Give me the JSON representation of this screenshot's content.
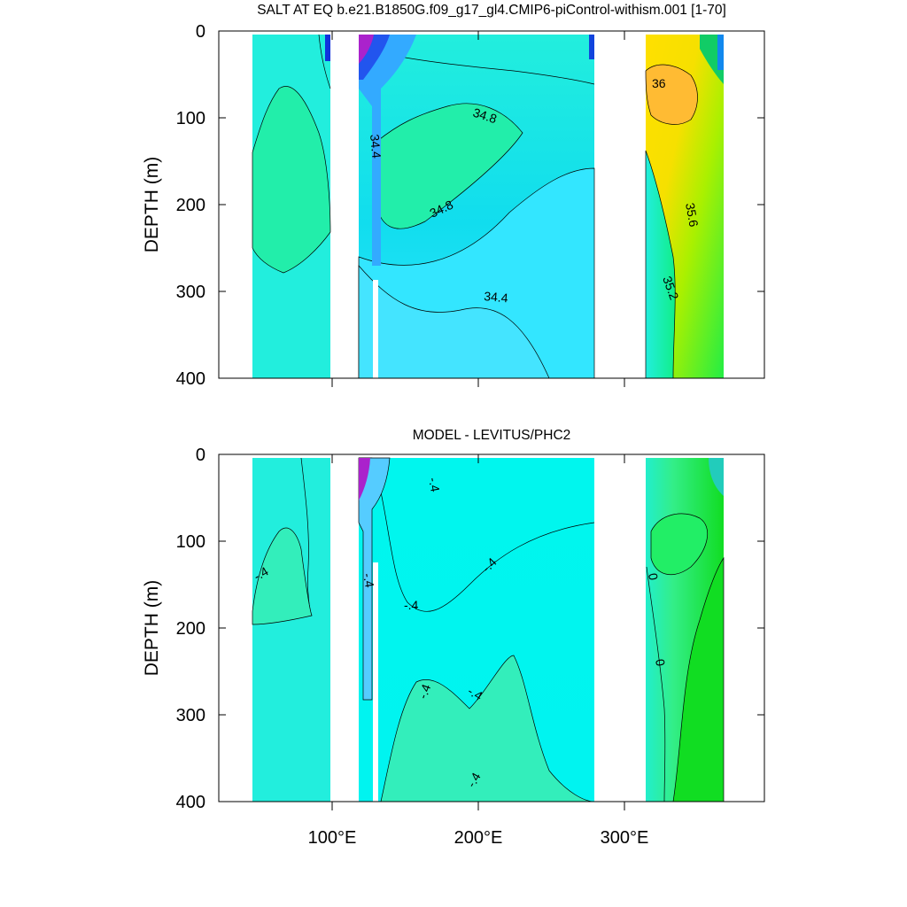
{
  "chart_data": [
    {
      "type": "heatmap",
      "subtype": "filled-contour depth-longitude section",
      "title": "SALT AT EQ b.e21.B1850G.f09_g17_gl4.CMIP6-piControl-withism.001 [1-70]",
      "ylabel": "DEPTH (m)",
      "xlabel": "",
      "xlim": [
        28,
        390
      ],
      "ylim": [
        0,
        400
      ],
      "y_inverted": true,
      "xticks": [
        100,
        200,
        300
      ],
      "xtick_labels": [
        "100°E",
        "200°E",
        "300°E"
      ],
      "yticks": [
        0,
        100,
        200,
        300,
        400
      ],
      "ytick_labels": [
        "0",
        "100",
        "200",
        "300",
        "400"
      ],
      "land_gaps_lon": [
        [
          98,
          118
        ],
        [
          278,
          315
        ]
      ],
      "contour_labels": [
        {
          "text": "34.8",
          "lon": 198,
          "depth": 96
        },
        {
          "text": "34.4",
          "lon": 127,
          "depth": 140
        },
        {
          "text": "34.8",
          "lon": 157,
          "depth": 210
        },
        {
          "text": "34.4",
          "lon": 204,
          "depth": 307
        },
        {
          "text": "36",
          "lon": 320,
          "depth": 62
        },
        {
          "text": "35.6",
          "lon": 337,
          "depth": 199
        },
        {
          "text": "35.2",
          "lon": 340,
          "depth": 285
        }
      ]
    },
    {
      "type": "heatmap",
      "subtype": "filled-contour depth-longitude section",
      "title": "MODEL - LEVITUS/PHC2",
      "ylabel": "DEPTH (m)",
      "xlabel": "",
      "xlim": [
        28,
        390
      ],
      "ylim": [
        0,
        400
      ],
      "y_inverted": true,
      "xticks": [
        100,
        200,
        300
      ],
      "xtick_labels": [
        "100°E",
        "200°E",
        "300°E"
      ],
      "yticks": [
        0,
        100,
        200,
        300,
        400
      ],
      "ytick_labels": [
        "0",
        "100",
        "200",
        "300",
        "400"
      ],
      "land_gaps_lon": [
        [
          98,
          118
        ],
        [
          278,
          315
        ]
      ],
      "contour_labels": [
        {
          "text": "-.4",
          "lon": 56,
          "depth": 140
        },
        {
          "text": "-.4",
          "lon": 123,
          "depth": 138
        },
        {
          "text": "-.4",
          "lon": 172,
          "depth": 18
        },
        {
          "text": "-.4",
          "lon": 200,
          "depth": 130
        },
        {
          "text": "-.4",
          "lon": 157,
          "depth": 173
        },
        {
          "text": "0",
          "lon": 317,
          "depth": 140
        },
        {
          "text": "0",
          "lon": 325,
          "depth": 240
        },
        {
          "text": "-.4",
          "lon": 169,
          "depth": 275
        },
        {
          "text": "-.4",
          "lon": 196,
          "depth": 280
        },
        {
          "text": "-.4",
          "lon": 200,
          "depth": 380
        }
      ]
    }
  ]
}
